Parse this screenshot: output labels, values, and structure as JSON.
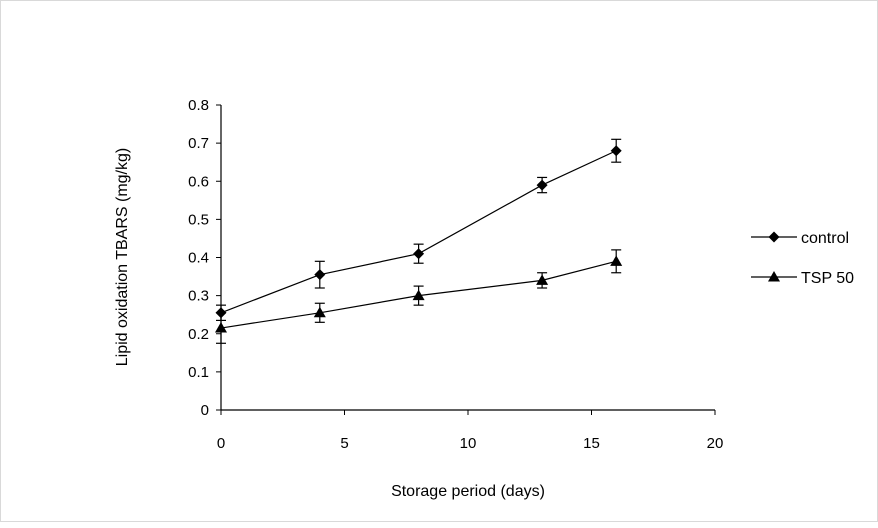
{
  "chart_data": {
    "type": "line",
    "xlabel": "Storage period (days)",
    "ylabel": "Lipid oxidation TBARS (mg/kg)",
    "xlim": [
      0,
      20
    ],
    "ylim": [
      0,
      0.8
    ],
    "x_ticks": [
      "0",
      "5",
      "10",
      "15",
      "20"
    ],
    "y_ticks": [
      "0",
      "0.1",
      "0.2",
      "0.3",
      "0.4",
      "0.5",
      "0.6",
      "0.7",
      "0.8"
    ],
    "grid": false,
    "legend_position": "right",
    "series": [
      {
        "name": "control",
        "marker": "diamond",
        "color": "#000000",
        "x": [
          0,
          4,
          8,
          13,
          16
        ],
        "y": [
          0.255,
          0.355,
          0.41,
          0.59,
          0.68
        ],
        "error": [
          0.02,
          0.035,
          0.025,
          0.02,
          0.03
        ]
      },
      {
        "name": "TSP 50",
        "marker": "triangle",
        "color": "#000000",
        "x": [
          0,
          4,
          8,
          13,
          16
        ],
        "y": [
          0.215,
          0.255,
          0.3,
          0.34,
          0.39
        ],
        "error": [
          0.04,
          0.025,
          0.025,
          0.02,
          0.03
        ]
      }
    ]
  }
}
